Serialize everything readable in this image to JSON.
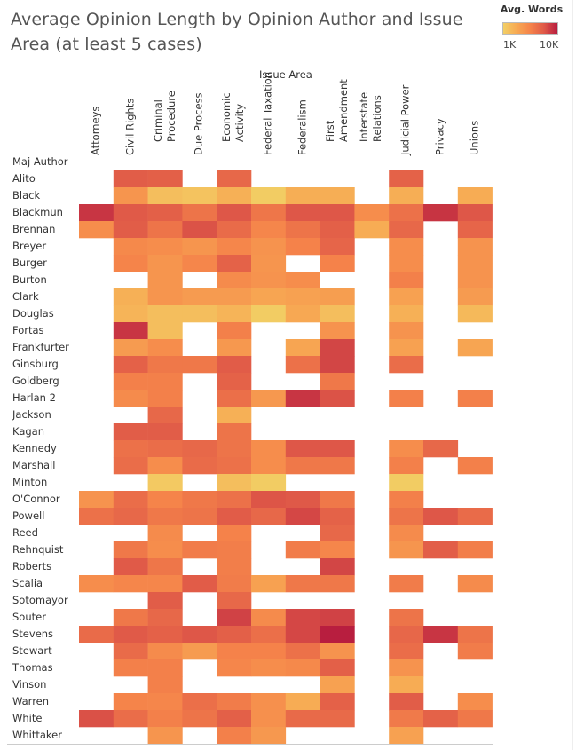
{
  "chart_data": {
    "type": "heatmap",
    "title": "Average Opinion Length by Opinion Author and Issue Area (at least 5 cases)",
    "xlabel": "Issue Area",
    "ylabel": "Maj Author",
    "legend": {
      "title": "Avg. Words",
      "min_label": "1K",
      "max_label": "10K",
      "min": 1000,
      "max": 10000,
      "scale": "log",
      "colors": [
        "#f2cf65",
        "#f7a953",
        "#f5834a",
        "#e05a48",
        "#b71c3f"
      ],
      "placement": "top-right"
    },
    "columns": [
      "Attorneys",
      "Civil Rights",
      "Criminal\nProcedure",
      "Due Process",
      "Economic\nActivity",
      "Federal Taxation",
      "Federalism",
      "First\nAmendment",
      "Interstate\nRelations",
      "Judicial Power",
      "Privacy",
      "Unions"
    ],
    "rows": [
      "Alito",
      "Black",
      "Blackmun",
      "Brennan",
      "Breyer",
      "Burger",
      "Burton",
      "Clark",
      "Douglas",
      "Fortas",
      "Frankfurter",
      "Ginsburg",
      "Goldberg",
      "Harlan 2",
      "Jackson",
      "Kagan",
      "Kennedy",
      "Marshall",
      "Minton",
      "O'Connor",
      "Powell",
      "Reed",
      "Rehnquist",
      "Roberts",
      "Scalia",
      "Sotomayor",
      "Souter",
      "Stevens",
      "Stewart",
      "Thomas",
      "Vinson",
      "Warren",
      "White",
      "Whittaker"
    ],
    "values": [
      [
        null,
        5400,
        5200,
        null,
        4600,
        null,
        null,
        null,
        null,
        5000,
        null,
        null
      ],
      [
        null,
        2400,
        1300,
        1200,
        1600,
        1050,
        1650,
        1650,
        null,
        1650,
        null,
        1700
      ],
      [
        7900,
        5600,
        5200,
        3900,
        5800,
        3800,
        5800,
        5800,
        2700,
        4100,
        8000,
        5800
      ],
      [
        2700,
        5400,
        3900,
        6000,
        4400,
        3000,
        3900,
        5200,
        1700,
        4600,
        null,
        4800
      ],
      [
        null,
        2900,
        2700,
        2400,
        3000,
        2500,
        3200,
        4800,
        null,
        2700,
        null,
        2500
      ],
      [
        null,
        3100,
        2400,
        3000,
        5000,
        2400,
        null,
        3200,
        null,
        2700,
        null,
        2500
      ],
      [
        null,
        null,
        2400,
        null,
        2800,
        2500,
        2700,
        null,
        null,
        3300,
        null,
        2500
      ],
      [
        null,
        1600,
        2400,
        2200,
        2200,
        1900,
        2000,
        2100,
        null,
        2000,
        null,
        2200
      ],
      [
        null,
        1500,
        1300,
        1300,
        1500,
        1050,
        1800,
        1300,
        null,
        1600,
        null,
        1400
      ],
      [
        null,
        7900,
        1300,
        null,
        3300,
        null,
        null,
        2500,
        null,
        2500,
        null,
        null
      ],
      [
        null,
        2200,
        2700,
        null,
        2300,
        null,
        1900,
        6800,
        null,
        2000,
        null,
        1900
      ],
      [
        null,
        5100,
        3700,
        3700,
        5500,
        null,
        4100,
        6800,
        null,
        4300,
        null,
        null
      ],
      [
        null,
        3300,
        3300,
        null,
        5000,
        null,
        null,
        3700,
        null,
        null,
        null,
        null
      ],
      [
        null,
        2800,
        3300,
        null,
        4200,
        2300,
        7900,
        6000,
        null,
        3300,
        null,
        3300
      ],
      [
        null,
        null,
        4600,
        null,
        1600,
        null,
        null,
        null,
        null,
        null,
        null,
        null
      ],
      [
        null,
        5400,
        5400,
        null,
        3900,
        null,
        null,
        null,
        null,
        null,
        null,
        null
      ],
      [
        null,
        4100,
        4300,
        4600,
        3900,
        2700,
        5800,
        5800,
        null,
        2700,
        4600,
        null
      ],
      [
        null,
        4300,
        2700,
        4400,
        4100,
        2700,
        3700,
        3700,
        null,
        3300,
        null,
        3300
      ],
      [
        null,
        null,
        1100,
        null,
        1300,
        1050,
        null,
        null,
        null,
        1050,
        null,
        null
      ],
      [
        2500,
        4300,
        3100,
        3700,
        4100,
        5900,
        5700,
        3700,
        null,
        3300,
        null,
        null
      ],
      [
        4100,
        4600,
        3700,
        3900,
        5500,
        4600,
        6700,
        5000,
        null,
        3900,
        5800,
        4400
      ],
      [
        null,
        null,
        2800,
        null,
        3200,
        null,
        null,
        4600,
        null,
        2800,
        null,
        null
      ],
      [
        null,
        3700,
        2700,
        3500,
        3400,
        null,
        3500,
        3000,
        null,
        2400,
        5300,
        3400
      ],
      [
        null,
        5600,
        3800,
        null,
        3400,
        null,
        null,
        6800,
        null,
        null,
        null,
        null
      ],
      [
        2700,
        3000,
        3000,
        5500,
        3500,
        2000,
        3700,
        3700,
        null,
        3500,
        null,
        2800
      ],
      [
        null,
        null,
        5400,
        null,
        4600,
        null,
        null,
        null,
        null,
        null,
        null,
        null
      ],
      [
        null,
        3700,
        4600,
        null,
        7000,
        2800,
        6700,
        7000,
        null,
        3900,
        null,
        null
      ],
      [
        4400,
        5600,
        5100,
        5800,
        5200,
        4200,
        6700,
        9800,
        null,
        4700,
        7900,
        3900
      ],
      [
        null,
        4400,
        2800,
        2200,
        3200,
        3200,
        4100,
        2500,
        null,
        4300,
        null,
        3500
      ],
      [
        null,
        3300,
        3300,
        null,
        3000,
        2700,
        2900,
        5200,
        null,
        2500,
        null,
        null
      ],
      [
        null,
        null,
        3300,
        null,
        null,
        null,
        null,
        2000,
        null,
        1700,
        null,
        null
      ],
      [
        null,
        3100,
        3000,
        4200,
        3500,
        2600,
        1700,
        5100,
        null,
        5400,
        null,
        2700
      ],
      [
        6100,
        4300,
        3300,
        3900,
        5200,
        2600,
        4500,
        4500,
        null,
        3600,
        5000,
        3700
      ],
      [
        null,
        null,
        2400,
        null,
        3300,
        2300,
        null,
        null,
        null,
        2000,
        null,
        null
      ]
    ]
  }
}
